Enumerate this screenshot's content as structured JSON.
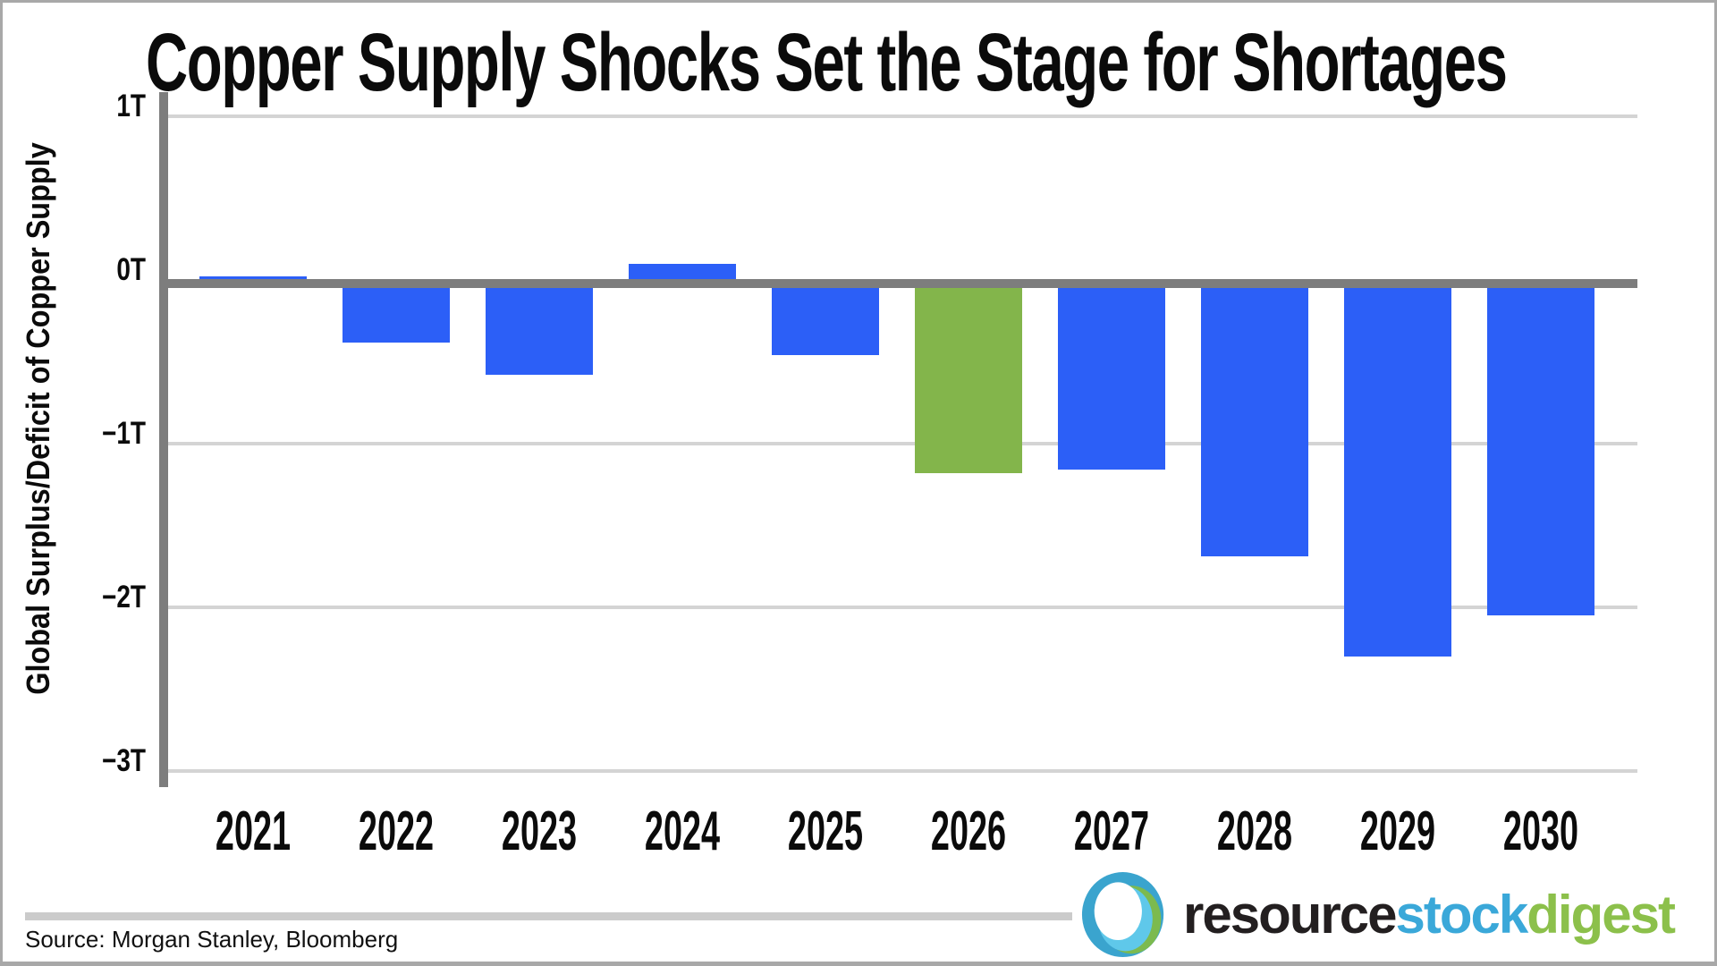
{
  "chart_data": {
    "type": "bar",
    "title": "Copper Supply Shocks Set the Stage for Shortages",
    "ylabel": "Global Surplus/Deficit of Copper Supply",
    "xlabel": "",
    "categories": [
      "2021",
      "2022",
      "2023",
      "2024",
      "2025",
      "2026",
      "2027",
      "2028",
      "2029",
      "2030"
    ],
    "values": [
      0.02,
      -0.38,
      -0.58,
      0.1,
      -0.46,
      -1.18,
      -1.16,
      -1.69,
      -2.3,
      -2.05
    ],
    "unit": "T",
    "ylim": [
      -3,
      1
    ],
    "yticks": [
      {
        "label": "1T",
        "value": 1
      },
      {
        "label": "0T",
        "value": 0
      },
      {
        "label": "−1T",
        "value": -1
      },
      {
        "label": "−2T",
        "value": -2
      },
      {
        "label": "−3T",
        "value": -3
      }
    ],
    "grid": "horizontal",
    "legend": "none",
    "highlight_index": 5,
    "highlight_category": "2026",
    "source": "Source: Morgan Stanley, Bloomberg"
  },
  "colors": {
    "bar_blue": "#2C5FF7",
    "bar_green": "#83B54B",
    "axis_gray": "#7D7D7D",
    "gridline_gray": "#D4D4D4",
    "divider_gray": "#CBCBCB",
    "text_black": "#0B0B0B",
    "logo_blue": "#3AA4CE",
    "logo_cyan": "#5FC8EA",
    "logo_green": "#7CBA4F",
    "logo_text_dark": "#231F20"
  },
  "footer": {
    "logo": {
      "word_resource": "resource",
      "word_stock": "stock",
      "word_digest": "digest"
    }
  }
}
